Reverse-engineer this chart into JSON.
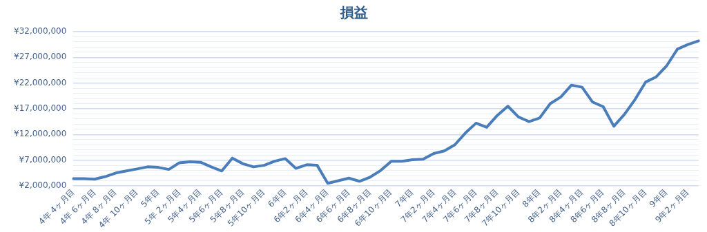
{
  "chart_data": {
    "type": "line",
    "title": "損益",
    "categories": [
      "4年 4ヶ月目",
      null,
      "4年 6ヶ月目",
      null,
      "4年 8ヶ月目",
      null,
      "4年 10ヶ月目",
      null,
      "5年目",
      null,
      "5年 2ヶ月目",
      null,
      "5年4ヶ月目",
      null,
      "5年6ヶ月目",
      null,
      "5年8ヶ月目",
      null,
      "5年10ヶ月目",
      null,
      "6年目",
      null,
      "6年2ヶ月目",
      null,
      "6年4ヶ月目",
      null,
      "6年6ヶ月目",
      null,
      "6年8ヶ月目",
      null,
      "6年10ヶ月目",
      null,
      "7年目",
      null,
      "7年2ヶ月目",
      null,
      "7年4ヶ月目",
      null,
      "7年6ヶ月目",
      null,
      "7年8ヶ月目",
      null,
      "7年10ヶ月目",
      null,
      "8年目",
      null,
      "8年2ヶ月目",
      null,
      "8年4ヶ月目",
      null,
      "8年6ヶ月目",
      null,
      "8年8ヶ月目",
      null,
      "8年10ヶ月目",
      null,
      "9年目",
      null,
      "9年2ヶ月目",
      null
    ],
    "series": [
      {
        "color": "#4a7ebb",
        "values": [
          3400000,
          3400000,
          3300000,
          3800000,
          4500000,
          4900000,
          5300000,
          5700000,
          5600000,
          5200000,
          6500000,
          6700000,
          6600000,
          5700000,
          4900000,
          7400000,
          6300000,
          5700000,
          6000000,
          6800000,
          7300000,
          5400000,
          6100000,
          6000000,
          2500000,
          3000000,
          3500000,
          2900000,
          3700000,
          5000000,
          6800000,
          6800000,
          7100000,
          7200000,
          8300000,
          8800000,
          10000000,
          12300000,
          14200000,
          13400000,
          15700000,
          17500000,
          15400000,
          14500000,
          15200000,
          18000000,
          19300000,
          21600000,
          21200000,
          18300000,
          17400000,
          13600000,
          15900000,
          18800000,
          22200000,
          23200000,
          25400000,
          28600000,
          29500000,
          30200000
        ]
      }
    ],
    "ylim": [
      2000000,
      32000000
    ],
    "yticks": [
      {
        "value": 2000000,
        "label": "¥2,000,000"
      },
      {
        "value": 3000000,
        "label": null
      },
      {
        "value": 4000000,
        "label": null
      },
      {
        "value": 5000000,
        "label": null
      },
      {
        "value": 6000000,
        "label": null
      },
      {
        "value": 7000000,
        "label": "¥7,000,000"
      },
      {
        "value": 8000000,
        "label": null
      },
      {
        "value": 9000000,
        "label": null
      },
      {
        "value": 10000000,
        "label": null
      },
      {
        "value": 11000000,
        "label": null
      },
      {
        "value": 12000000,
        "label": "¥12,000,000"
      },
      {
        "value": 13000000,
        "label": null
      },
      {
        "value": 14000000,
        "label": null
      },
      {
        "value": 15000000,
        "label": null
      },
      {
        "value": 16000000,
        "label": null
      },
      {
        "value": 17000000,
        "label": "¥17,000,000"
      },
      {
        "value": 18000000,
        "label": null
      },
      {
        "value": 19000000,
        "label": null
      },
      {
        "value": 20000000,
        "label": null
      },
      {
        "value": 21000000,
        "label": null
      },
      {
        "value": 22000000,
        "label": "¥22,000,000"
      },
      {
        "value": 23000000,
        "label": null
      },
      {
        "value": 24000000,
        "label": null
      },
      {
        "value": 25000000,
        "label": null
      },
      {
        "value": 26000000,
        "label": null
      },
      {
        "value": 27000000,
        "label": "¥27,000,000"
      },
      {
        "value": 28000000,
        "label": null
      },
      {
        "value": 29000000,
        "label": null
      },
      {
        "value": 30000000,
        "label": null
      },
      {
        "value": 31000000,
        "label": null
      },
      {
        "value": 32000000,
        "label": "¥32,000,000"
      }
    ],
    "grid": "y",
    "legend": false,
    "marker": "none",
    "line_style": "solid"
  }
}
